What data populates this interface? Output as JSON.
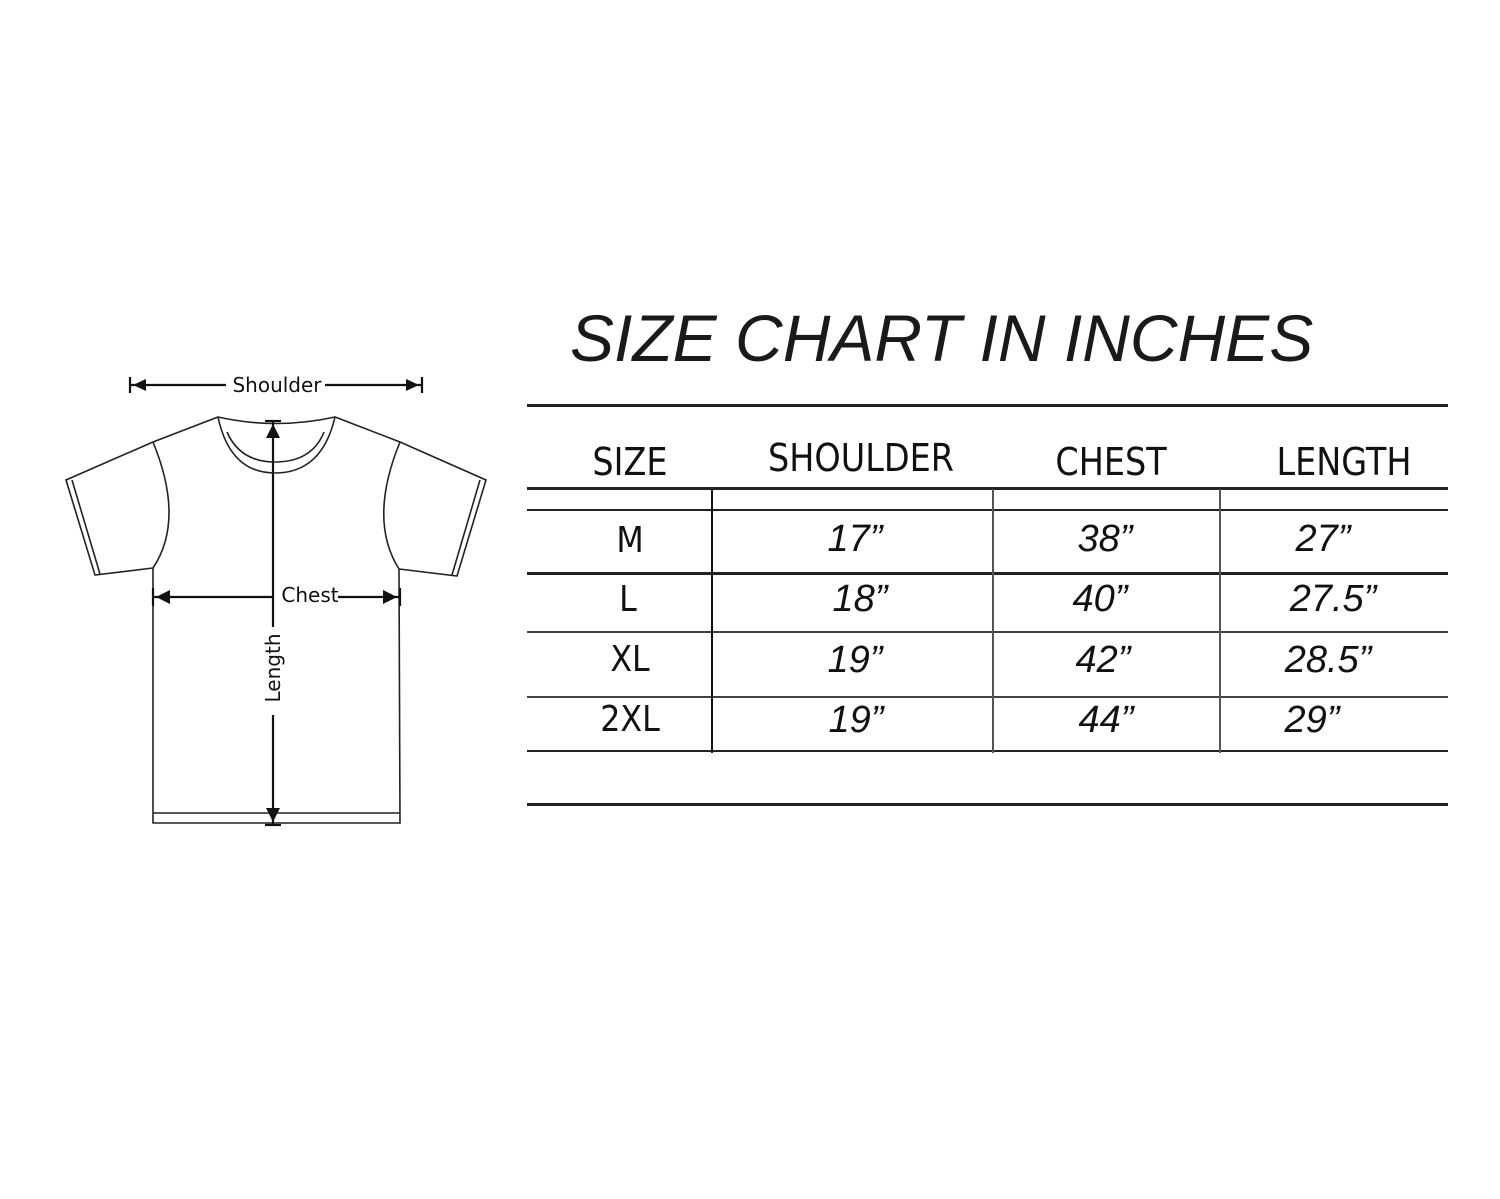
{
  "diagram": {
    "shoulder_label": "Shoulder",
    "chest_label": "Chest",
    "length_label": "Length"
  },
  "title": "SIZE CHART IN INCHES",
  "table": {
    "headers": [
      "SIZE",
      "SHOULDER",
      "CHEST",
      "LENGTH"
    ],
    "rows": [
      [
        "M",
        "17”",
        "38”",
        "27”"
      ],
      [
        "L",
        "18”",
        "40”",
        "27.5”"
      ],
      [
        "XL",
        "19”",
        "42”",
        "28.5”"
      ],
      [
        "2XL",
        "19”",
        "44”",
        "29”"
      ]
    ]
  }
}
